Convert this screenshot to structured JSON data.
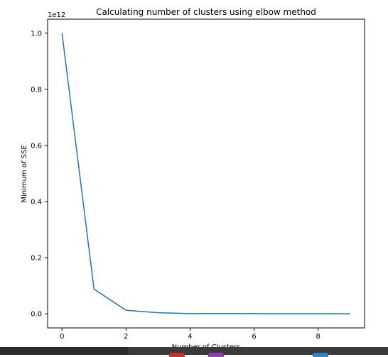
{
  "chart_data": {
    "type": "line",
    "title": "Calculating number of clusters using elbow method",
    "xlabel": "Number of Clusters",
    "ylabel": "Minimum of SSE",
    "y_offset_label": "1e12",
    "xlim": [
      -0.45,
      9.45
    ],
    "ylim": [
      -0.05,
      1.05
    ],
    "x_ticks": [
      0,
      2,
      4,
      6,
      8
    ],
    "x_tick_labels": [
      "0",
      "2",
      "4",
      "6",
      "8"
    ],
    "y_ticks": [
      0.0,
      0.2,
      0.4,
      0.6,
      0.8,
      1.0
    ],
    "y_tick_labels": [
      "0.0",
      "0.2",
      "0.4",
      "0.6",
      "0.8",
      "1.0"
    ],
    "grid": false,
    "series": [
      {
        "color": "#1f77b4",
        "x": [
          0,
          1,
          2,
          3,
          4,
          5,
          6,
          7,
          8,
          9
        ],
        "y": [
          1.0,
          0.088,
          0.013,
          0.004,
          0.001,
          0.001,
          0.001,
          0.0005,
          0.0005,
          0.0005
        ]
      }
    ]
  },
  "taskbar": {
    "background": "#3a3a3a",
    "icon_colors": [
      "#c0392b",
      "#8e44ad",
      "#2e86c1"
    ]
  }
}
